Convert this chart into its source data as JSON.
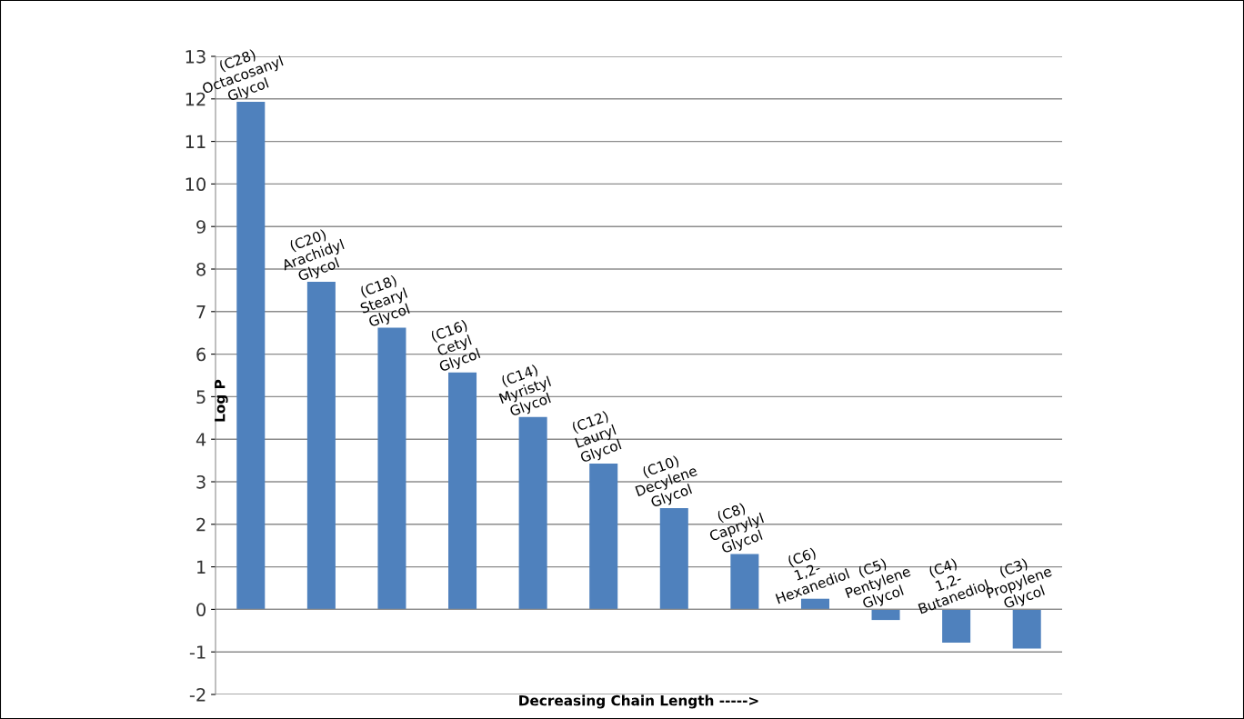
{
  "chart_data": {
    "type": "bar",
    "xlabel": "Decreasing Chain Length ----->",
    "ylabel": "Log P",
    "categories": [
      "(C28)\nOctacosanyl\nGlycol",
      "(C20)\nArachidyl\nGlycol",
      "(C18)\nStearyl\nGlycol",
      "(C16)\nCetyl\nGlycol",
      "(C14)\nMyristyl\nGlycol",
      "(C12)\nLauryl\nGlycol",
      "(C10)\nDecylene\nGlycol",
      "(C8)\nCaprylyl\nGlycol",
      "(C6)\n1,2-\nHexanediol",
      "(C5)\nPentylene\nGlycol",
      "(C4)\n1,2-\nButanediol",
      "(C3)\nPropylene\nGlycol"
    ],
    "values": [
      11.93,
      7.7,
      6.62,
      5.57,
      4.52,
      3.43,
      2.38,
      1.3,
      0.25,
      -0.25,
      -0.78,
      -0.92
    ],
    "color": "#4f81bd",
    "ylim": [
      -2,
      13
    ],
    "yticks": [
      -2,
      -1,
      0,
      1,
      2,
      3,
      4,
      5,
      6,
      7,
      8,
      9,
      10,
      11,
      12,
      13
    ],
    "grid": "y"
  }
}
